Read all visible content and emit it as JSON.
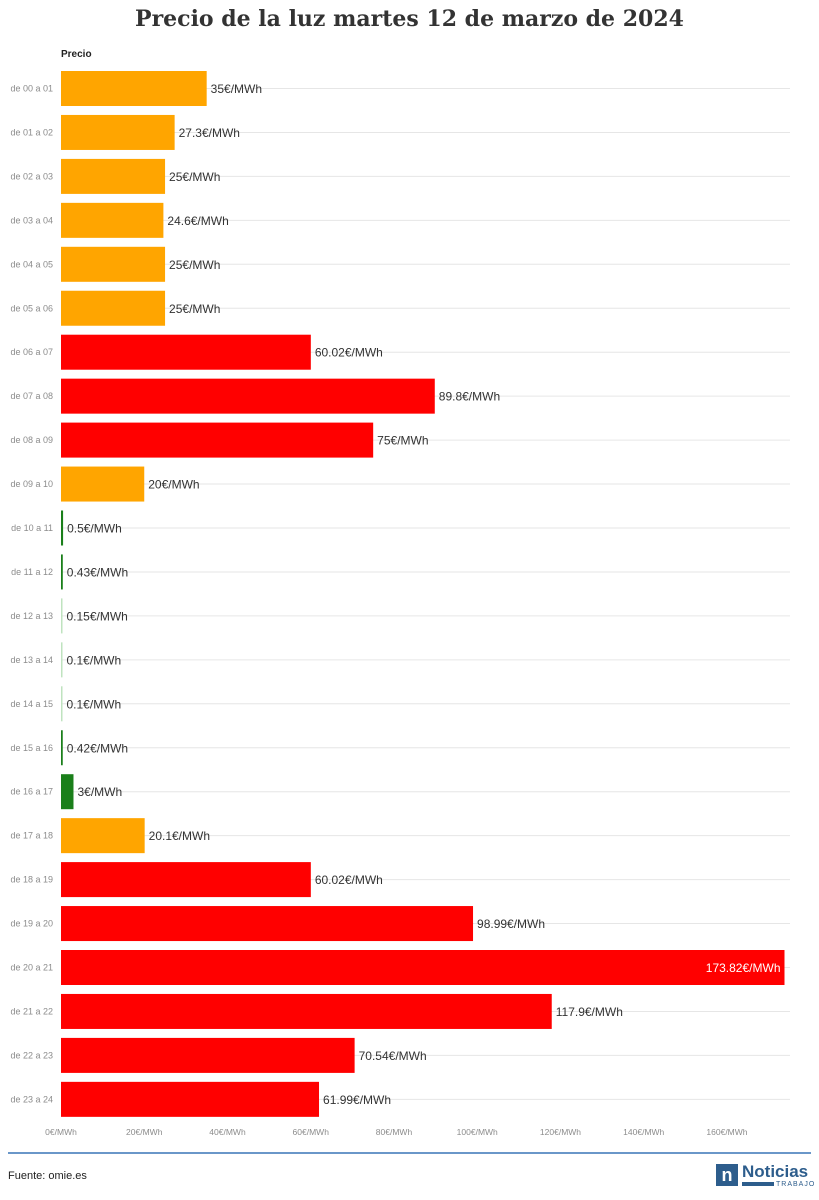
{
  "title": "Precio de la luz martes 12 de marzo de 2024",
  "source": "Fuente: omie.es",
  "logo": {
    "name": "Noticias",
    "subtitle": "TRABAJO",
    "mark": "n"
  },
  "colors": {
    "high": "#ff0000",
    "mid": "#ffa500",
    "low": "#1a7f1a"
  },
  "chart_data": {
    "type": "bar",
    "orientation": "horizontal",
    "series_label": "Precio",
    "unit": "€/MWh",
    "categories": [
      "de 00 a 01",
      "de 01 a 02",
      "de 02 a 03",
      "de 03 a 04",
      "de 04 a 05",
      "de 05 a 06",
      "de 06 a 07",
      "de 07 a 08",
      "de 08 a 09",
      "de 09 a 10",
      "de 10 a 11",
      "de 11 a 12",
      "de 12 a 13",
      "de 13 a 14",
      "de 14 a 15",
      "de 15 a 16",
      "de 16 a 17",
      "de 17 a 18",
      "de 18 a 19",
      "de 19 a 20",
      "de 20 a 21",
      "de 21 a 22",
      "de 22 a 23",
      "de 23 a 24"
    ],
    "values": [
      35,
      27.3,
      25,
      24.6,
      25,
      25,
      60.02,
      89.8,
      75,
      20,
      0.5,
      0.43,
      0.15,
      0.1,
      0.1,
      0.42,
      3,
      20.1,
      60.02,
      98.99,
      173.82,
      117.9,
      70.54,
      61.99
    ],
    "value_labels": [
      "35€/MWh",
      "27.3€/MWh",
      "25€/MWh",
      "24.6€/MWh",
      "25€/MWh",
      "25€/MWh",
      "60.02€/MWh",
      "89.8€/MWh",
      "75€/MWh",
      "20€/MWh",
      "0.5€/MWh",
      "0.43€/MWh",
      "0.15€/MWh",
      "0.1€/MWh",
      "0.1€/MWh",
      "0.42€/MWh",
      "3€/MWh",
      "20.1€/MWh",
      "60.02€/MWh",
      "98.99€/MWh",
      "173.82€/MWh",
      "117.9€/MWh",
      "70.54€/MWh",
      "61.99€/MWh"
    ],
    "bar_colors": [
      "mid",
      "mid",
      "mid",
      "mid",
      "mid",
      "mid",
      "high",
      "high",
      "high",
      "mid",
      "low",
      "low",
      "low",
      "low",
      "low",
      "low",
      "low",
      "mid",
      "high",
      "high",
      "high",
      "high",
      "high",
      "high"
    ],
    "x_ticks": [
      0,
      20,
      40,
      60,
      80,
      100,
      120,
      140,
      160
    ],
    "x_tick_labels": [
      "0€/MWh",
      "20€/MWh",
      "40€/MWh",
      "60€/MWh",
      "80€/MWh",
      "100€/MWh",
      "120€/MWh",
      "140€/MWh",
      "160€/MWh"
    ],
    "xlim": [
      0,
      175
    ],
    "grid": true
  }
}
